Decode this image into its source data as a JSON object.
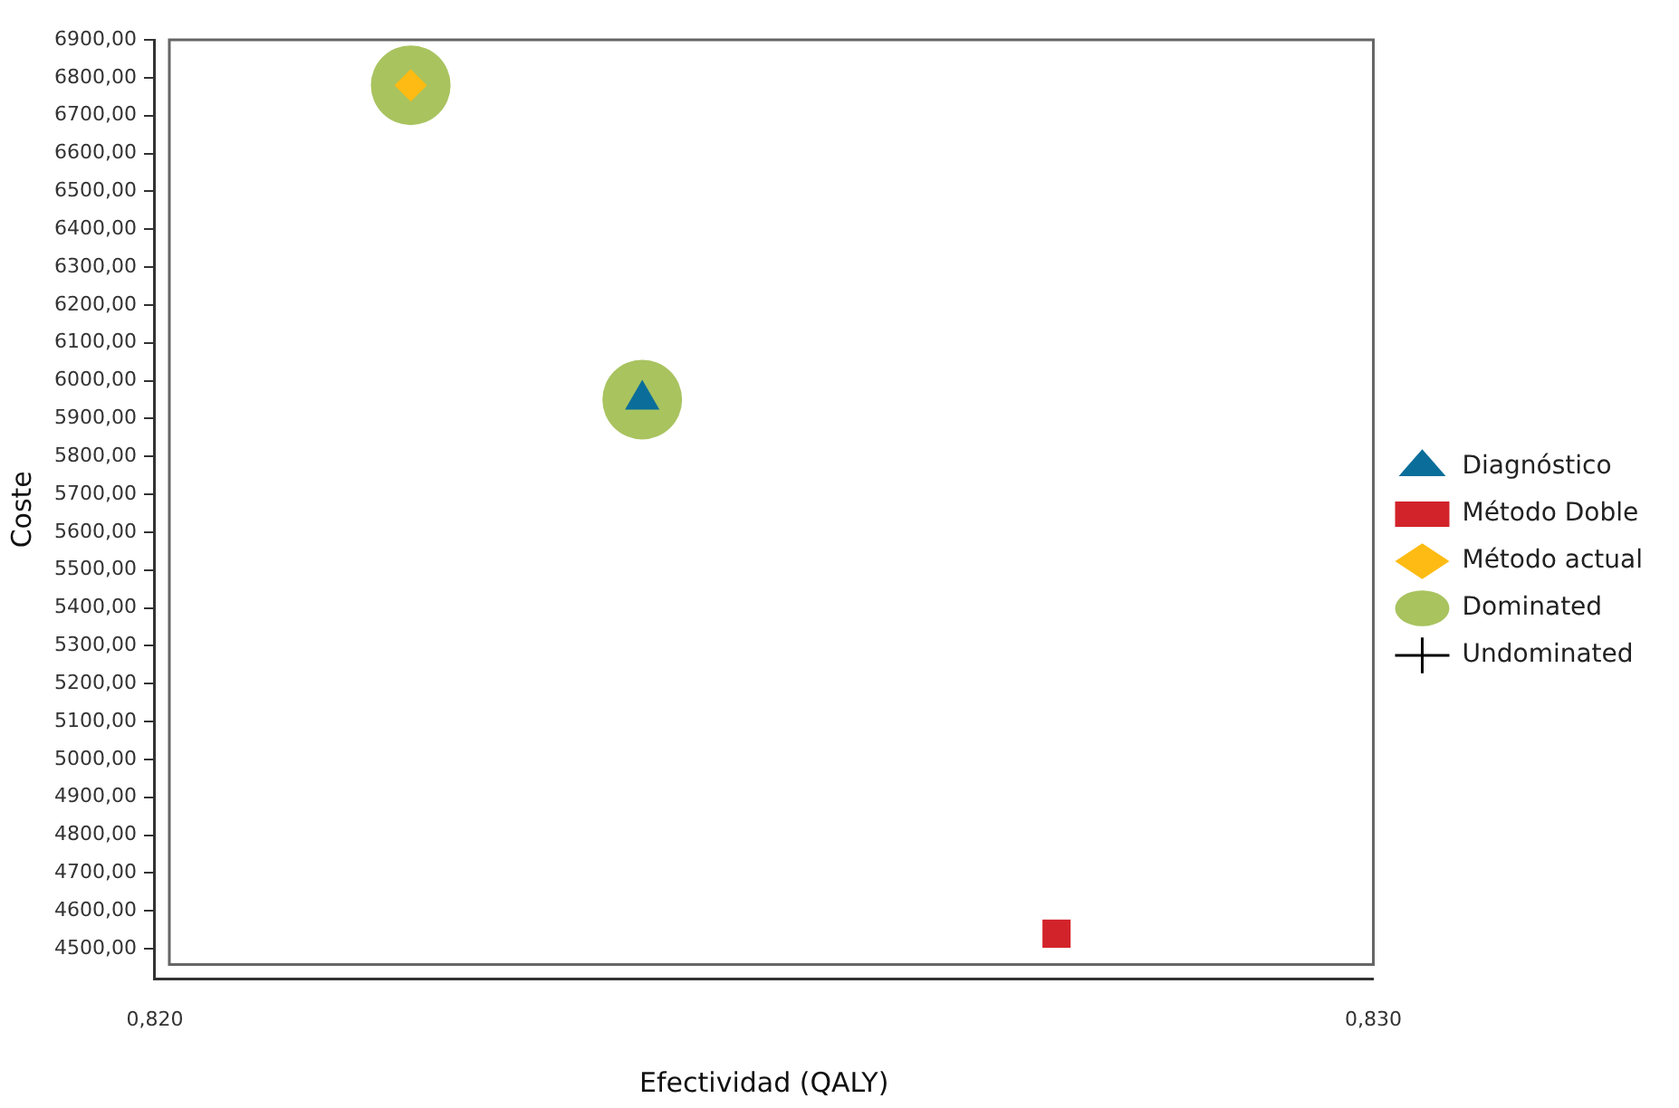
{
  "chart_data": {
    "type": "scatter",
    "xlabel": "Efectividad (QALY)",
    "ylabel": "Coste",
    "series": [
      {
        "name": "Diagnóstico",
        "color": "#0b6e9a",
        "marker": "triangle",
        "x": [
          0.824
        ],
        "values": [
          5950
        ]
      },
      {
        "name": "Método Doble",
        "color": "#d2232a",
        "marker": "square",
        "x": [
          0.8274
        ],
        "values": [
          4540
        ]
      },
      {
        "name": "Método actual",
        "color": "#fdbb13",
        "marker": "diamond",
        "x": [
          0.8221
        ],
        "values": [
          6780
        ]
      },
      {
        "name": "Dominated",
        "color": "#a9c35f",
        "marker": "circle",
        "x": [
          0.8221,
          0.824
        ],
        "values": [
          6780,
          5950
        ]
      },
      {
        "name": "Undominated",
        "color": "#000000",
        "marker": "cross"
      }
    ],
    "xlim": [
      0.82,
      0.83
    ],
    "xticks": [
      {
        "value": 0.82,
        "label": "0,820"
      },
      {
        "value": 0.83,
        "label": "0,830"
      }
    ],
    "ylim": [
      4420,
      6900
    ],
    "yticks": [
      {
        "value": 4500,
        "label": "4500,00"
      },
      {
        "value": 4600,
        "label": "4600,00"
      },
      {
        "value": 4700,
        "label": "4700,00"
      },
      {
        "value": 4800,
        "label": "4800,00"
      },
      {
        "value": 4900,
        "label": "4900,00"
      },
      {
        "value": 5000,
        "label": "5000,00"
      },
      {
        "value": 5100,
        "label": "5100,00"
      },
      {
        "value": 5200,
        "label": "5200,00"
      },
      {
        "value": 5300,
        "label": "5300,00"
      },
      {
        "value": 5400,
        "label": "5400,00"
      },
      {
        "value": 5500,
        "label": "5500,00"
      },
      {
        "value": 5600,
        "label": "5600,00"
      },
      {
        "value": 5700,
        "label": "5700,00"
      },
      {
        "value": 5800,
        "label": "5800,00"
      },
      {
        "value": 5900,
        "label": "5900,00"
      },
      {
        "value": 6000,
        "label": "6000,00"
      },
      {
        "value": 6100,
        "label": "6100,00"
      },
      {
        "value": 6200,
        "label": "6200,00"
      },
      {
        "value": 6300,
        "label": "6300,00"
      },
      {
        "value": 6400,
        "label": "6400,00"
      },
      {
        "value": 6500,
        "label": "6500,00"
      },
      {
        "value": 6600,
        "label": "6600,00"
      },
      {
        "value": 6700,
        "label": "6700,00"
      },
      {
        "value": 6800,
        "label": "6800,00"
      },
      {
        "value": 6900,
        "label": "6900,00"
      }
    ],
    "grid": false,
    "legend": "right"
  }
}
